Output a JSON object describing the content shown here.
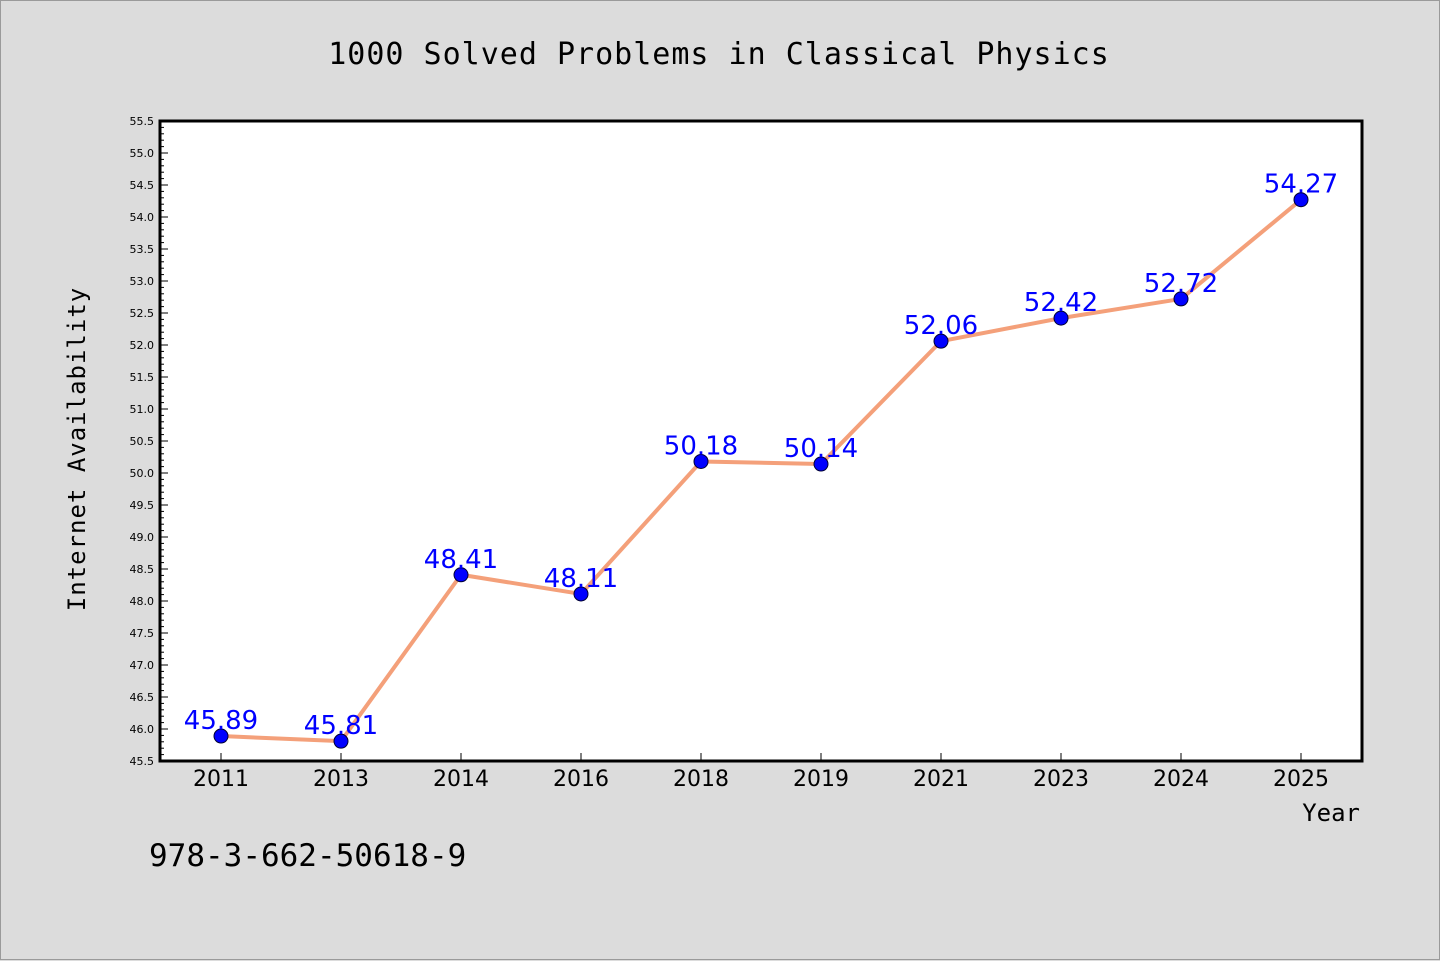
{
  "chart_data": {
    "type": "line",
    "title": "1000 Solved Problems in Classical Physics",
    "xlabel": "Year",
    "ylabel": "Internet Availability",
    "categories": [
      "2011",
      "2013",
      "2014",
      "2016",
      "2018",
      "2019",
      "2021",
      "2023",
      "2024",
      "2025"
    ],
    "series": [
      {
        "values": [
          45.89,
          45.81,
          48.41,
          48.11,
          50.18,
          50.14,
          52.06,
          52.42,
          52.72,
          54.27
        ],
        "line_color": "#f4a07a",
        "marker_color": "#0000ff",
        "label_color": "#0000ff"
      }
    ],
    "ylim": [
      45.5,
      55.5
    ],
    "yticks": [
      "45.5",
      "46.0",
      "46.5",
      "47.0",
      "47.5",
      "48.0",
      "48.5",
      "49.0",
      "49.5",
      "50.0",
      "50.5",
      "51.0",
      "51.5",
      "52.0",
      "52.5",
      "53.0",
      "53.5",
      "54.0",
      "54.5",
      "55.0",
      "55.5"
    ],
    "grid": false,
    "annotation": "978-3-662-50618-9"
  }
}
